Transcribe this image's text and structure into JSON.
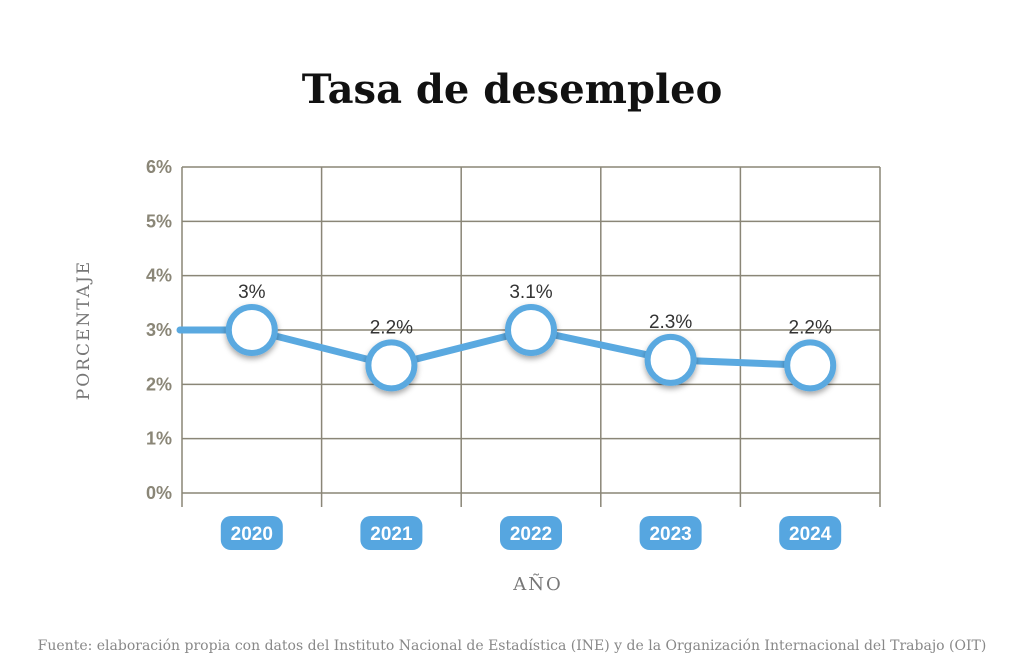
{
  "title": "Tasa de desempleo",
  "source": "Fuente: elaboración propia con datos del Instituto Nacional de Estadística (INE) y de la Organización Internacional del Trabajo (OIT)",
  "colors": {
    "line": "#5aa9e0",
    "grid": "#8a8677",
    "axis_text": "#8a8677",
    "pill": "#56a6e0",
    "pill_text": "#ffffff"
  },
  "chart_data": {
    "type": "line",
    "title": "Tasa de desempleo",
    "xlabel": "AÑO",
    "ylabel": "PORCENTAJE",
    "categories": [
      "2020",
      "2021",
      "2022",
      "2023",
      "2024"
    ],
    "values": [
      3.0,
      2.2,
      3.1,
      2.3,
      2.2
    ],
    "plotted_values": [
      3.0,
      2.35,
      3.0,
      2.45,
      2.35
    ],
    "data_labels": [
      "3%",
      "2.2%",
      "3.1%",
      "2.3%",
      "2.2%"
    ],
    "y_ticks": [
      "0%",
      "1%",
      "2%",
      "3%",
      "4%",
      "5%",
      "6%"
    ],
    "ylim": [
      0,
      6
    ],
    "grid": true,
    "legend": "none"
  }
}
